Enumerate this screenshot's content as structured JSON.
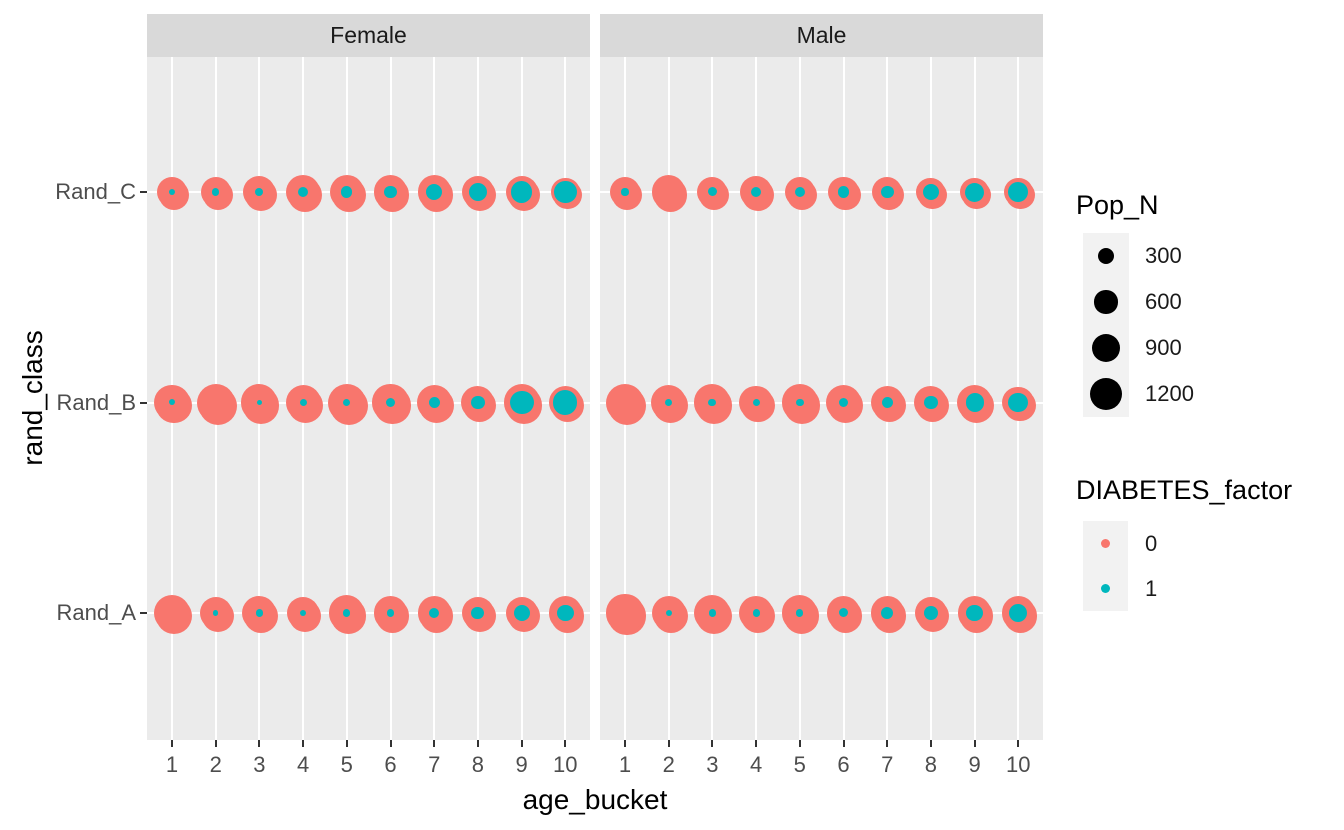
{
  "chart_data": {
    "type": "scatter",
    "subtype": "faceted-bubble",
    "facets": [
      "Female",
      "Male"
    ],
    "xlabel": "age_bucket",
    "ylabel": "rand_class",
    "x_categories": [
      "1",
      "2",
      "3",
      "4",
      "5",
      "6",
      "7",
      "8",
      "9",
      "10"
    ],
    "y_categories_top_to_bottom": [
      "Rand_C",
      "Rand_B",
      "Rand_A"
    ],
    "grid": "major gridlines white on grey panel",
    "legend_position": "right",
    "size_legend": {
      "title": "Pop_N",
      "breaks": [
        300,
        600,
        900,
        1200
      ],
      "break_labels": [
        "300",
        "600",
        "900",
        "1200"
      ],
      "key_color": "#000000"
    },
    "color_legend": {
      "title": "DIABETES_factor",
      "items": [
        {
          "label": "0",
          "color": "#F8766D"
        },
        {
          "label": "1",
          "color": "#00B7BD"
        }
      ]
    },
    "series": [
      {
        "facet": "Female",
        "rand_class": "Rand_C",
        "pop_n_factor0": [
          1060,
          1000,
          1130,
          1280,
          1280,
          1280,
          1210,
          1130,
          1130,
          930
        ],
        "pop_n_factor1": [
          50,
          55,
          70,
          110,
          135,
          185,
          285,
          360,
          490,
          585
        ]
      },
      {
        "facet": "Female",
        "rand_class": "Rand_B",
        "pop_n_factor0": [
          1360,
          1600,
          1440,
          1360,
          1600,
          1440,
          1360,
          1210,
          1440,
          1210
        ],
        "pop_n_factor1": [
          40,
          0,
          30,
          55,
          55,
          90,
          135,
          215,
          630,
          640
        ]
      },
      {
        "facet": "Female",
        "rand_class": "Rand_A",
        "pop_n_factor0": [
          1440,
          1130,
          1280,
          1130,
          1360,
          1210,
          1210,
          1130,
          1130,
          1210
        ],
        "pop_n_factor1": [
          0,
          30,
          55,
          40,
          55,
          70,
          110,
          185,
          285,
          320
        ]
      },
      {
        "facet": "Male",
        "rand_class": "Rand_C",
        "pop_n_factor0": [
          1000,
          1210,
          1000,
          1130,
          1000,
          1060,
          1000,
          930,
          930,
          930
        ],
        "pop_n_factor1": [
          55,
          0,
          90,
          110,
          110,
          135,
          185,
          285,
          400,
          445
        ]
      },
      {
        "facet": "Male",
        "rand_class": "Rand_B",
        "pop_n_factor0": [
          1600,
          1360,
          1440,
          1280,
          1440,
          1360,
          1210,
          1210,
          1360,
          1130
        ],
        "pop_n_factor1": [
          0,
          55,
          70,
          55,
          70,
          90,
          135,
          215,
          360,
          440
        ]
      },
      {
        "facet": "Male",
        "rand_class": "Rand_A",
        "pop_n_factor0": [
          1520,
          1280,
          1440,
          1280,
          1360,
          1280,
          1210,
          1130,
          1210,
          1210
        ],
        "pop_n_factor1": [
          0,
          40,
          55,
          55,
          55,
          90,
          160,
          215,
          320,
          360
        ]
      }
    ],
    "colors": {
      "panel_bg": "#EBEBEB",
      "strip_bg": "#D9D9D9",
      "gridline": "#FFFFFF",
      "legend_key_bg": "#F2F2F2",
      "tick_label": "#4D4D4D",
      "factor0": "#F8766D",
      "factor1": "#00B7BD"
    }
  }
}
